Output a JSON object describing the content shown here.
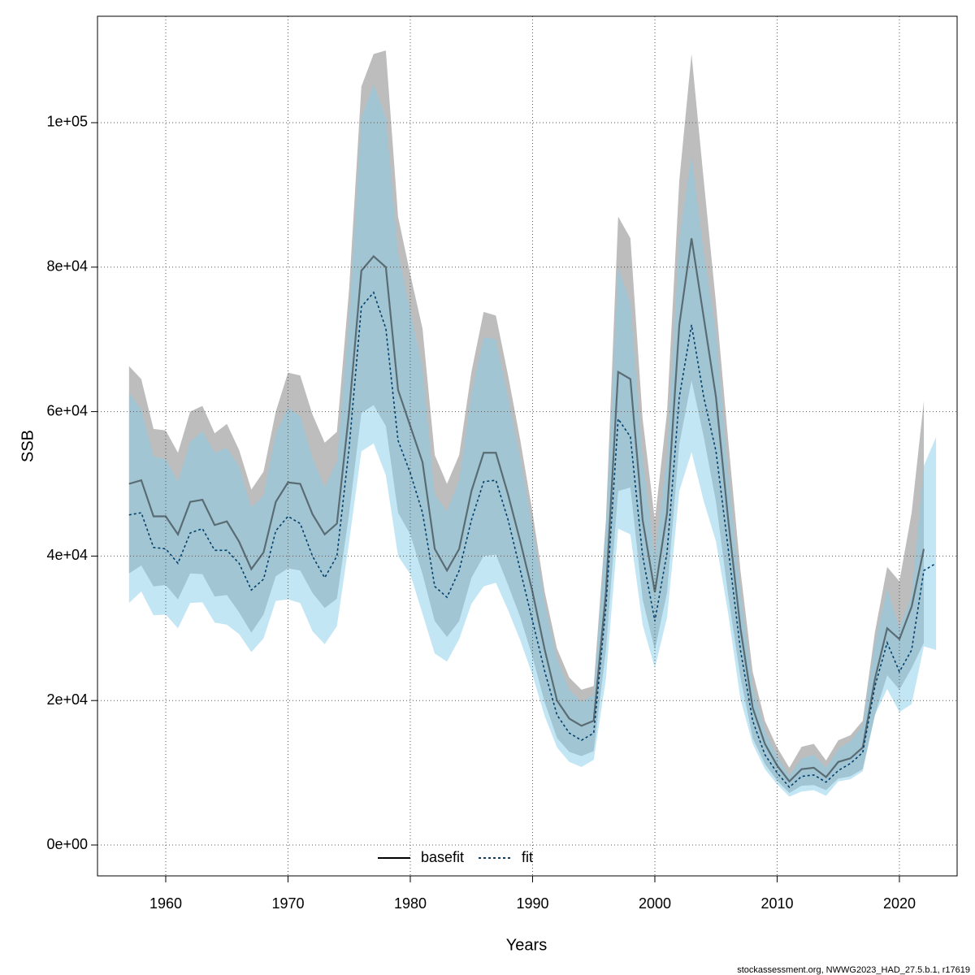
{
  "chart_data": {
    "type": "line",
    "xlabel": "Years",
    "ylabel": "SSB",
    "footer": "stockassessment.org, NWWG2023_HAD_27.5.b.1, r17619",
    "legend": "bottom",
    "grid": true,
    "x": [
      1957,
      1958,
      1959,
      1960,
      1961,
      1962,
      1963,
      1964,
      1965,
      1966,
      1967,
      1968,
      1969,
      1970,
      1971,
      1972,
      1973,
      1974,
      1975,
      1976,
      1977,
      1978,
      1979,
      1980,
      1981,
      1982,
      1983,
      1984,
      1985,
      1986,
      1987,
      1988,
      1989,
      1990,
      1991,
      1992,
      1993,
      1994,
      1995,
      1996,
      1997,
      1998,
      1999,
      2000,
      2001,
      2002,
      2003,
      2004,
      2005,
      2006,
      2007,
      2008,
      2009,
      2010,
      2011,
      2012,
      2013,
      2014,
      2015,
      2016,
      2017,
      2018,
      2019,
      2020,
      2021,
      2022,
      2023
    ],
    "xlim": [
      1954.42,
      2024.72
    ],
    "xticks": [
      1960,
      1970,
      1980,
      1990,
      2000,
      2010,
      2020
    ],
    "ylim": [
      -4274,
      114735
    ],
    "yticks": [
      {
        "value": 0,
        "label": "0e+00"
      },
      {
        "value": 20000,
        "label": "2e+04"
      },
      {
        "value": 40000,
        "label": "4e+04"
      },
      {
        "value": 60000,
        "label": "6e+04"
      },
      {
        "value": 80000,
        "label": "8e+04"
      },
      {
        "value": 100000,
        "label": "1e+05"
      }
    ],
    "series": [
      {
        "name": "basefit",
        "color": "#000000",
        "band_color": "#bdbdbd",
        "dashed": false,
        "values": [
          50000,
          50500,
          45500,
          45500,
          43000,
          47500,
          47800,
          44300,
          44800,
          42000,
          38200,
          40500,
          47500,
          50200,
          50000,
          45800,
          43000,
          44500,
          60000,
          79500,
          81500,
          80000,
          63000,
          58000,
          53000,
          41000,
          38000,
          41000,
          49000,
          54300,
          54300,
          48500,
          42000,
          35000,
          27000,
          20000,
          17500,
          16500,
          17200,
          35000,
          65500,
          64500,
          45000,
          35000,
          46000,
          72000,
          84000,
          73000,
          62000,
          45000,
          30000,
          19000,
          14000,
          11000,
          8800,
          10500,
          10700,
          9400,
          11500,
          12000,
          13500,
          23000,
          30000,
          28500,
          33000,
          41000,
          null
        ],
        "upper": [
          66300,
          64500,
          57600,
          57400,
          54300,
          60000,
          60800,
          57000,
          58300,
          54700,
          49200,
          51700,
          60000,
          65400,
          65000,
          59600,
          55700,
          57200,
          77000,
          105000,
          109500,
          110000,
          87000,
          79000,
          71500,
          54000,
          50000,
          54000,
          65500,
          73800,
          73300,
          65000,
          56000,
          46000,
          35000,
          27200,
          23200,
          21500,
          22000,
          45000,
          87000,
          84000,
          59000,
          45000,
          60000,
          92000,
          109500,
          92000,
          75000,
          56000,
          38000,
          24000,
          17200,
          13500,
          10700,
          13600,
          14000,
          11700,
          14500,
          15200,
          17200,
          29500,
          38500,
          36500,
          46000,
          61500,
          null
        ],
        "lower": [
          37600,
          38700,
          35800,
          36000,
          34000,
          37600,
          37500,
          34400,
          34600,
          32200,
          29400,
          31900,
          37200,
          38300,
          38000,
          34900,
          32800,
          34100,
          45900,
          59800,
          60900,
          58000,
          46000,
          43000,
          37500,
          31000,
          28800,
          31000,
          37000,
          40000,
          40200,
          36000,
          31500,
          26000,
          19700,
          14800,
          12900,
          12300,
          13000,
          27000,
          49000,
          49500,
          34000,
          27000,
          35000,
          55500,
          64300,
          56500,
          47500,
          34500,
          23200,
          14800,
          11200,
          8900,
          7200,
          8200,
          8300,
          7600,
          9200,
          9500,
          10500,
          18000,
          23500,
          21500,
          24500,
          28000,
          null
        ]
      },
      {
        "name": "fit",
        "color": "#003f6b",
        "band_color": "#87ceeb",
        "dashed": true,
        "values": [
          45700,
          46000,
          41200,
          41000,
          39000,
          43200,
          43800,
          40800,
          40800,
          39000,
          35300,
          36800,
          43500,
          45500,
          44500,
          40000,
          37000,
          40000,
          55000,
          74500,
          76500,
          71500,
          56000,
          51500,
          46000,
          35800,
          34300,
          38000,
          45000,
          50300,
          50500,
          45000,
          38000,
          31000,
          24000,
          18000,
          15500,
          14500,
          15500,
          33000,
          59000,
          56500,
          40000,
          31000,
          40500,
          62000,
          72000,
          62000,
          54500,
          41000,
          27000,
          17200,
          12500,
          10000,
          8000,
          9500,
          9700,
          8700,
          10300,
          11300,
          12800,
          22000,
          28000,
          24000,
          27000,
          38000,
          39000
        ],
        "upper": [
          62700,
          60300,
          53800,
          53400,
          50300,
          55800,
          57300,
          54300,
          55000,
          52400,
          46700,
          48400,
          57000,
          60500,
          59400,
          53600,
          49500,
          53100,
          73000,
          100700,
          105300,
          100700,
          82000,
          74000,
          66000,
          48500,
          46200,
          50500,
          62500,
          70300,
          70000,
          62000,
          53500,
          44000,
          33500,
          25800,
          21500,
          19800,
          20800,
          44000,
          80000,
          75000,
          53500,
          40000,
          54000,
          84000,
          95500,
          82000,
          71000,
          51500,
          35000,
          22000,
          15800,
          12300,
          9600,
          12000,
          12500,
          10700,
          13300,
          14400,
          16500,
          28000,
          35500,
          30000,
          34500,
          52500,
          56500
        ],
        "lower": [
          33500,
          35100,
          31800,
          31900,
          30000,
          33500,
          33600,
          30800,
          30500,
          29200,
          26700,
          28600,
          33800,
          34000,
          33500,
          29600,
          27800,
          30300,
          42000,
          54500,
          55600,
          51200,
          40000,
          37500,
          32000,
          26500,
          25400,
          28500,
          33400,
          35800,
          36300,
          32500,
          28300,
          23500,
          17800,
          13500,
          11500,
          10800,
          11800,
          23000,
          43800,
          43000,
          30500,
          24500,
          31500,
          49000,
          54400,
          47600,
          42000,
          32000,
          20200,
          14000,
          10500,
          8400,
          6700,
          7400,
          7600,
          6800,
          8800,
          9100,
          10200,
          18000,
          21600,
          18400,
          19500,
          27500,
          27000
        ]
      }
    ]
  }
}
